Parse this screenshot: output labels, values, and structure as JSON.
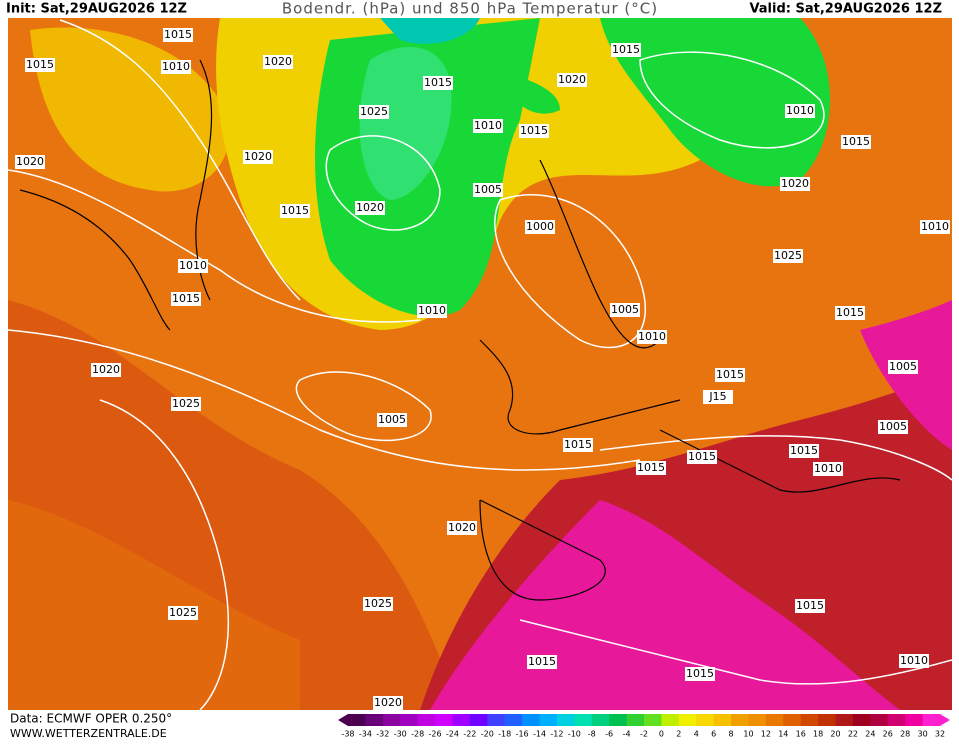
{
  "header": {
    "init": "Init: Sat,29AUG2026 12Z",
    "title": "Bodendr. (hPa) und 850 hPa Temperatur (°C)",
    "valid": "Valid: Sat,29AUG2026 12Z"
  },
  "footer": {
    "source": "Data: ECMWF OPER 0.250°",
    "site": "WWW.WETTERZENTRALE.DE"
  },
  "isobar_labels": [
    "1015",
    "1015",
    "1010",
    "1020",
    "1015",
    "1015",
    "1020",
    "1025",
    "1010",
    "1015",
    "1010",
    "1015",
    "1020",
    "1020",
    "1020",
    "1005",
    "1015",
    "1020",
    "1000",
    "1010",
    "1010",
    "1025",
    "1015",
    "1010",
    "1005",
    "1015",
    "1010",
    "1020",
    "1015",
    "1005",
    "1025",
    "J15",
    "1005",
    "1005",
    "1015",
    "1015",
    "1015",
    "1010",
    "1015",
    "1020",
    "1025",
    "1025",
    "1015",
    "1015",
    "1015",
    "1010",
    "1020"
  ],
  "colorbar": {
    "ticks": [
      -38,
      -34,
      -32,
      -30,
      -28,
      -26,
      -24,
      -22,
      -20,
      -18,
      -16,
      -14,
      -12,
      -10,
      -8,
      -6,
      -4,
      -2,
      0,
      2,
      4,
      6,
      8,
      10,
      12,
      14,
      16,
      18,
      20,
      22,
      24,
      26,
      28,
      30,
      32
    ],
    "colors": [
      "#4b0050",
      "#6a007a",
      "#8a00a0",
      "#a000c0",
      "#c000e0",
      "#d000ff",
      "#a000ff",
      "#7000ff",
      "#4040ff",
      "#2060ff",
      "#0090ff",
      "#00b0ff",
      "#00d0e0",
      "#00e0b0",
      "#00d080",
      "#00c050",
      "#30d030",
      "#60e020",
      "#c0f000",
      "#f0f000",
      "#f8d800",
      "#f8c000",
      "#f0a000",
      "#f09000",
      "#e87800",
      "#e06000",
      "#d04800",
      "#c03000",
      "#b01818",
      "#a00020",
      "#b00040",
      "#d00070",
      "#f000a0",
      "#ff20d0"
    ]
  }
}
